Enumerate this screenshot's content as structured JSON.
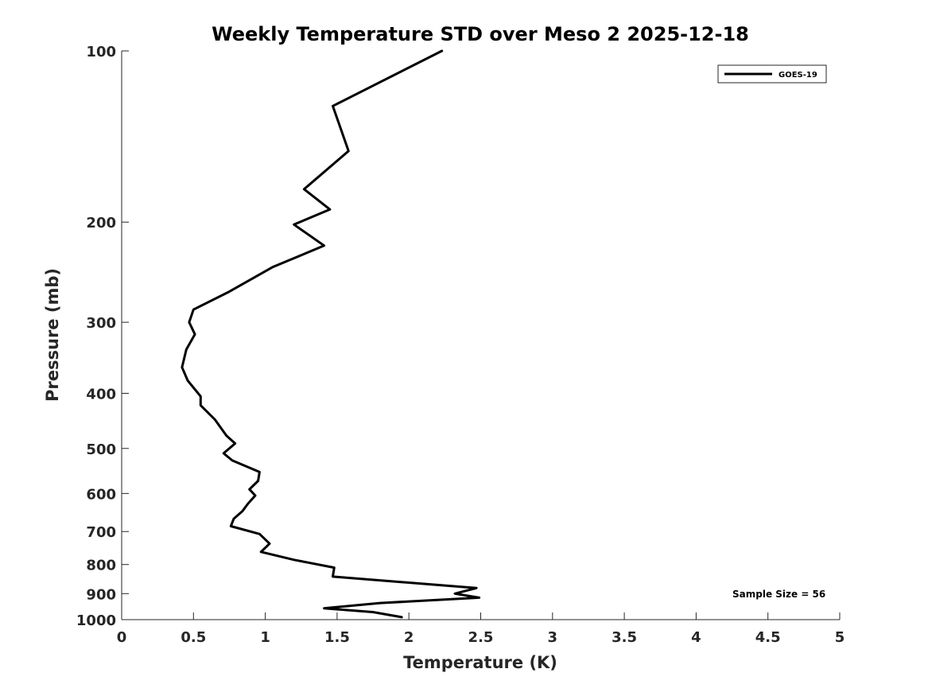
{
  "chart_data": {
    "type": "line",
    "title": "Weekly Temperature STD over Meso 2 2025-12-18",
    "xlabel": "Temperature (K)",
    "ylabel": "Pressure (mb)",
    "xlim": [
      0,
      5
    ],
    "ylim": [
      100,
      1000
    ],
    "yscale": "log",
    "yreversed": true,
    "xticks": [
      0,
      0.5,
      1,
      1.5,
      2,
      2.5,
      3,
      3.5,
      4,
      4.5,
      5
    ],
    "xtick_labels": [
      "0",
      "0.5",
      "1",
      "1.5",
      "2",
      "2.5",
      "3",
      "3.5",
      "4",
      "4.5",
      "5"
    ],
    "yticks": [
      100,
      200,
      300,
      400,
      500,
      600,
      700,
      800,
      900,
      1000
    ],
    "ytick_labels": [
      "100",
      "200",
      "300",
      "400",
      "500",
      "600",
      "700",
      "800",
      "900",
      "1000"
    ],
    "grid": false,
    "legend": {
      "position": "top-right",
      "entries": [
        "GOES-19"
      ]
    },
    "annotation": "Sample Size = 56",
    "series": [
      {
        "name": "GOES-19",
        "color": "#000000",
        "points": [
          [
            2.23,
            100
          ],
          [
            1.47,
            125
          ],
          [
            1.58,
            150
          ],
          [
            1.27,
            175
          ],
          [
            1.45,
            190
          ],
          [
            1.2,
            202
          ],
          [
            1.41,
            220
          ],
          [
            1.05,
            240
          ],
          [
            0.75,
            265
          ],
          [
            0.5,
            285
          ],
          [
            0.47,
            300
          ],
          [
            0.51,
            315
          ],
          [
            0.45,
            335
          ],
          [
            0.42,
            360
          ],
          [
            0.46,
            380
          ],
          [
            0.55,
            405
          ],
          [
            0.55,
            420
          ],
          [
            0.65,
            445
          ],
          [
            0.73,
            475
          ],
          [
            0.79,
            490
          ],
          [
            0.71,
            510
          ],
          [
            0.77,
            525
          ],
          [
            0.96,
            550
          ],
          [
            0.95,
            570
          ],
          [
            0.89,
            590
          ],
          [
            0.93,
            605
          ],
          [
            0.88,
            625
          ],
          [
            0.84,
            645
          ],
          [
            0.78,
            665
          ],
          [
            0.76,
            685
          ],
          [
            0.96,
            707
          ],
          [
            1.03,
            735
          ],
          [
            0.97,
            760
          ],
          [
            1.2,
            785
          ],
          [
            1.48,
            810
          ],
          [
            1.47,
            840
          ],
          [
            2.47,
            880
          ],
          [
            2.32,
            900
          ],
          [
            2.49,
            915
          ],
          [
            1.8,
            935
          ],
          [
            1.41,
            955
          ],
          [
            1.75,
            970
          ],
          [
            1.95,
            990
          ]
        ]
      }
    ]
  }
}
